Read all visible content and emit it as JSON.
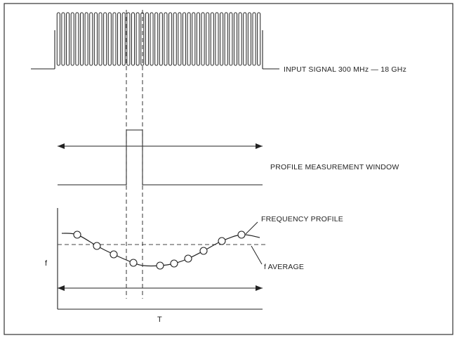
{
  "labels": {
    "input_signal": "INPUT SIGNAL 300 MHz — 18 GHz",
    "profile_window": "PROFILE MEASUREMENT WINDOW",
    "frequency_profile": "FREQUENCY PROFILE",
    "f_average": "f AVERAGE",
    "y_axis": "f",
    "x_axis": "T"
  },
  "signal": {
    "pulse_count": 44
  },
  "colors": {
    "ink": "#222222",
    "paper": "#ffffff"
  }
}
